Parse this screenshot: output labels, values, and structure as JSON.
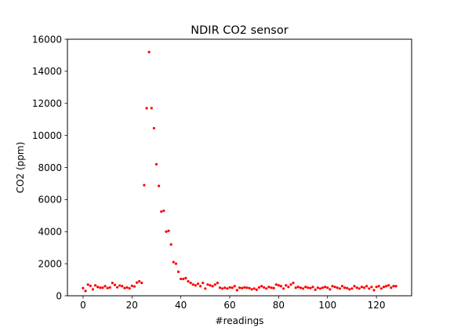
{
  "chart_data": {
    "type": "scatter",
    "title": "NDIR CO2 sensor",
    "xlabel": "#readings",
    "ylabel": "CO2 (ppm)",
    "xlim": [
      -6.4,
      134.4
    ],
    "ylim": [
      0,
      16000
    ],
    "xticks": [
      0,
      20,
      40,
      60,
      80,
      100,
      120
    ],
    "yticks": [
      0,
      2000,
      4000,
      6000,
      8000,
      10000,
      12000,
      14000,
      16000
    ],
    "grid": false,
    "marker_color": "#ff0000",
    "series": [
      {
        "x": [
          0,
          1,
          2,
          3,
          4,
          5,
          6,
          7,
          8,
          9,
          10,
          11,
          12,
          13,
          14,
          15,
          16,
          17,
          18,
          19,
          20,
          21,
          22,
          23,
          24,
          25,
          26,
          27,
          28,
          29,
          30,
          31,
          32,
          33,
          34,
          35,
          36,
          37,
          38,
          39,
          40,
          41,
          42,
          43,
          44,
          45,
          46,
          47,
          48,
          49,
          50,
          51,
          52,
          53,
          54,
          55,
          56,
          57,
          58,
          59,
          60,
          61,
          62,
          63,
          64,
          65,
          66,
          67,
          68,
          69,
          70,
          71,
          72,
          73,
          74,
          75,
          76,
          77,
          78,
          79,
          80,
          81,
          82,
          83,
          84,
          85,
          86,
          87,
          88,
          89,
          90,
          91,
          92,
          93,
          94,
          95,
          96,
          97,
          98,
          99,
          100,
          101,
          102,
          103,
          104,
          105,
          106,
          107,
          108,
          109,
          110,
          111,
          112,
          113,
          114,
          115,
          116,
          117,
          118,
          119,
          120,
          121,
          122,
          123,
          124,
          125,
          126,
          127,
          128
        ],
        "y": [
          480,
          300,
          700,
          620,
          400,
          650,
          550,
          500,
          500,
          600,
          480,
          520,
          800,
          680,
          530,
          640,
          600,
          480,
          520,
          460,
          620,
          580,
          820,
          900,
          800,
          6900,
          11700,
          15200,
          11700,
          10450,
          8200,
          6850,
          5250,
          5300,
          4000,
          4050,
          3200,
          2100,
          2000,
          1500,
          1050,
          1050,
          1100,
          900,
          800,
          700,
          650,
          750,
          600,
          800,
          450,
          700,
          650,
          600,
          700,
          800,
          500,
          450,
          500,
          450,
          520,
          500,
          600,
          350,
          500,
          480,
          520,
          500,
          480,
          400,
          450,
          380,
          520,
          600,
          520,
          450,
          550,
          500,
          480,
          700,
          650,
          600,
          450,
          650,
          550,
          700,
          800,
          500,
          550,
          500,
          450,
          550,
          500,
          480,
          550,
          380,
          500,
          450,
          500,
          550,
          500,
          400,
          600,
          550,
          500,
          450,
          600,
          500,
          480,
          400,
          450,
          600,
          500,
          450,
          550,
          500,
          600,
          450,
          550,
          350,
          550,
          600,
          450,
          550,
          600,
          650,
          500,
          600,
          600
        ]
      }
    ]
  }
}
